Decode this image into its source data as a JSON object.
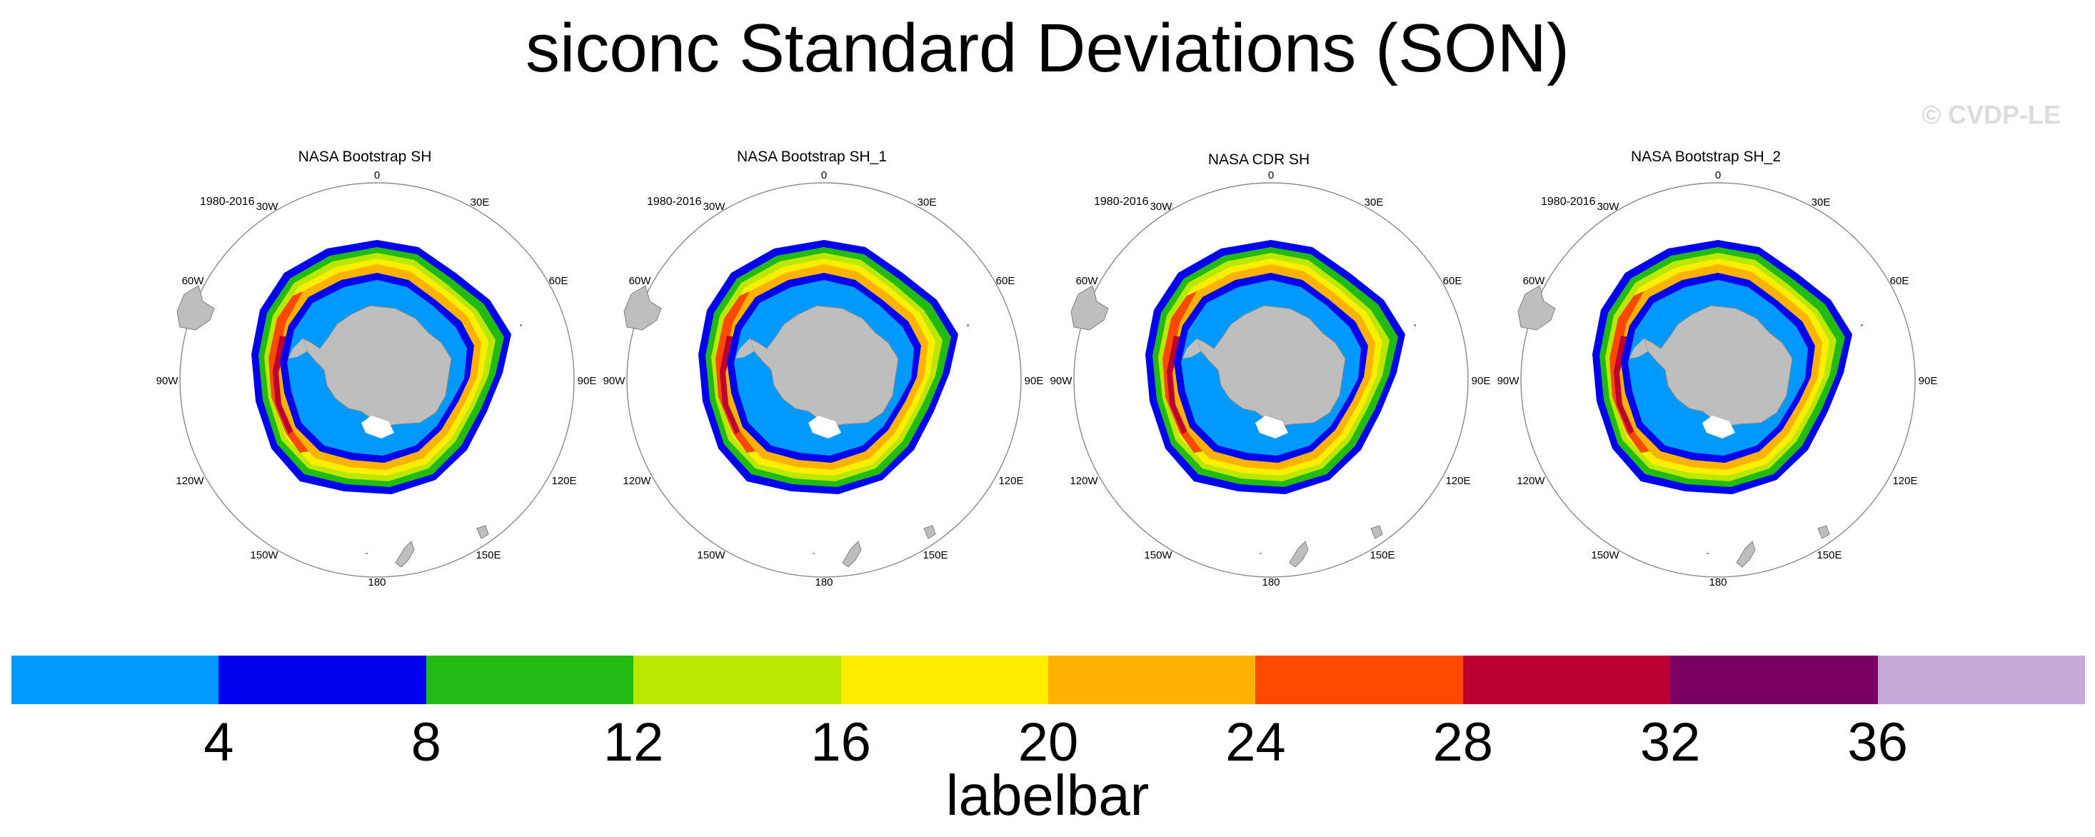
{
  "title": "siconc Standard Deviations (SON)",
  "watermark": "© CVDP-LE",
  "panels": [
    {
      "title": "NASA Bootstrap SH",
      "period": "1980-2016"
    },
    {
      "title": "NASA Bootstrap SH_1",
      "period": "1980-2016"
    },
    {
      "title": "NASA CDR SH",
      "period": "1980-2016"
    },
    {
      "title": "NASA Bootstrap SH_2",
      "period": "1980-2016"
    }
  ],
  "longitude_labels": [
    "0",
    "30E",
    "60E",
    "90E",
    "120E",
    "150E",
    "180",
    "150W",
    "120W",
    "90W",
    "60W",
    "30W"
  ],
  "labelbar": {
    "title": "labelbar",
    "ticks": [
      "4",
      "8",
      "12",
      "16",
      "20",
      "24",
      "28",
      "32",
      "36"
    ],
    "colors": [
      "#0099ff",
      "#0000ee",
      "#22bb11",
      "#bbe800",
      "#ffee00",
      "#ffb300",
      "#ff4800",
      "#bb0033",
      "#7a0066",
      "#c8a8d8"
    ]
  },
  "colors": {
    "land": "#bebebe",
    "coast": "#808080",
    "circle": "#8a8a8a",
    "watermark": "#dcdcdc"
  }
}
